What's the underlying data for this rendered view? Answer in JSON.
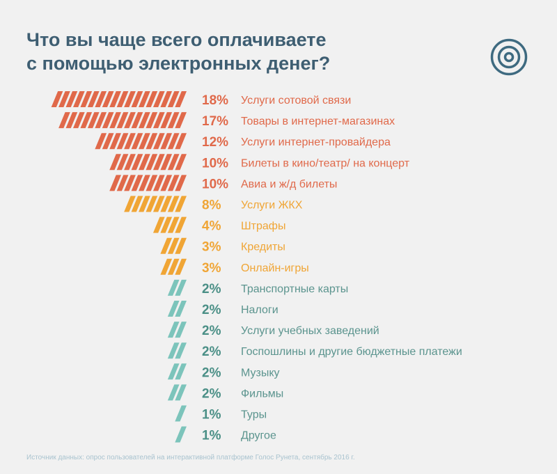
{
  "header": {
    "title_line1": "Что вы чаще всего оплачиваете",
    "title_line2": "с помощью электронных денег?",
    "icon": "target-icon"
  },
  "colors": {
    "title": "#3e5e72",
    "tier_high": "#e0694a",
    "tier_mid": "#f0a535",
    "tier_low_bar": "#7cc4bb",
    "tier_low_pct": "#4a8f86",
    "tier_low_label": "#5b948e",
    "source": "#a9c3cf"
  },
  "chart_data": {
    "type": "bar",
    "orientation": "horizontal",
    "title": "Что вы чаще всего оплачиваете с помощью электронных денег?",
    "unit": "%",
    "mark_style": "one slanted stripe per percentage point",
    "categories": [
      "Услуги сотовой связи",
      "Товары в интернет-магазинах",
      "Услуги интернет-провайдера",
      "Билеты в кино/театр/ на концерт",
      "Авиа и ж/д билеты",
      "Услуги ЖКХ",
      "Штрафы",
      "Кредиты",
      "Онлайн-игры",
      "Транспортные карты",
      "Налоги",
      "Услуги учебных заведений",
      "Госпошлины и другие бюджетные платежи",
      "Музыку",
      "Фильмы",
      "Туры",
      "Другое"
    ],
    "values": [
      18,
      17,
      12,
      10,
      10,
      8,
      4,
      3,
      3,
      2,
      2,
      2,
      2,
      2,
      2,
      1,
      1
    ],
    "value_labels": [
      "18%",
      "17%",
      "12%",
      "10%",
      "10%",
      "8%",
      "4%",
      "3%",
      "3%",
      "2%",
      "2%",
      "2%",
      "2%",
      "2%",
      "2%",
      "1%",
      "1%"
    ],
    "tiers": [
      "high",
      "high",
      "high",
      "high",
      "high",
      "mid",
      "mid",
      "mid",
      "mid",
      "low",
      "low",
      "low",
      "low",
      "low",
      "low",
      "low",
      "low"
    ]
  },
  "footer": {
    "source": "Источник данных: опрос пользователей на интерактивной платформе Голос Рунета, сентябрь 2016 г."
  }
}
